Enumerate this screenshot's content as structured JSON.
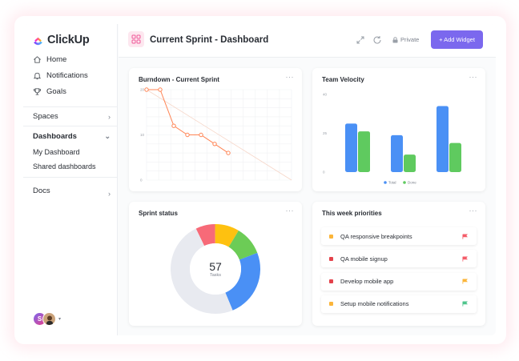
{
  "brand": {
    "name": "ClickUp"
  },
  "sidebar": {
    "nav": [
      {
        "label": "Home",
        "icon": "home-icon"
      },
      {
        "label": "Notifications",
        "icon": "bell-icon"
      },
      {
        "label": "Goals",
        "icon": "trophy-icon"
      }
    ],
    "spaces": {
      "label": "Spaces"
    },
    "dashboards": {
      "label": "Dashboards",
      "items": [
        {
          "label": "My Dashboard"
        },
        {
          "label": "Shared dashboards"
        }
      ]
    },
    "docs": {
      "label": "Docs"
    },
    "user_initial": "S"
  },
  "header": {
    "title": "Current Sprint - Dashboard",
    "privacy": "Private",
    "add_widget": "+ Add Widget"
  },
  "widgets": {
    "burndown": {
      "title": "Burndown - Current Sprint",
      "more": "···",
      "chart_data": {
        "type": "line",
        "y_ticks": [
          "20",
          "10",
          "0"
        ],
        "ylim": [
          0,
          20
        ],
        "series": [
          {
            "values": [
              20,
              20,
              12,
              10,
              10,
              8,
              6
            ]
          }
        ],
        "guideline": [
          20,
          0
        ]
      }
    },
    "velocity": {
      "title": "Team Velocity",
      "more": "···",
      "chart_data": {
        "type": "bar",
        "y_ticks": [
          "40",
          "25",
          "0"
        ],
        "ylim": [
          0,
          40
        ],
        "categories": [
          "",
          "",
          ""
        ],
        "series": [
          {
            "name": "Total",
            "color": "#4a90f5",
            "values": [
              25,
              19,
              34
            ]
          },
          {
            "name": "Done",
            "color": "#5fca5f",
            "values": [
              21,
              9,
              15
            ]
          }
        ],
        "legend": "bottom"
      }
    },
    "sprint_status": {
      "title": "Sprint status",
      "more": "···",
      "center_value": "57",
      "center_label": "Tasks",
      "chart_data": {
        "type": "pie",
        "slices": [
          {
            "color": "#f76a78",
            "value": 4
          },
          {
            "color": "#fec110",
            "value": 5
          },
          {
            "color": "#6ccc56",
            "value": 6
          },
          {
            "color": "#4a90f5",
            "value": 14
          },
          {
            "color": "#e8eaf0",
            "value": 28
          }
        ]
      }
    },
    "priorities": {
      "title": "This week priorities",
      "more": "···",
      "items": [
        {
          "label": "QA responsive breakpoints",
          "dot": "#fbb53a",
          "flag": "#f45c69"
        },
        {
          "label": "QA mobile signup",
          "dot": "#e4424b",
          "flag": "#f45c69"
        },
        {
          "label": "Develop mobile app",
          "dot": "#e4424b",
          "flag": "#fbb53a"
        },
        {
          "label": "Setup mobile notifications",
          "dot": "#fbb53a",
          "flag": "#4fc58c"
        }
      ]
    }
  },
  "colors": {
    "accent": "#7b68ee",
    "burndown_line": "#ff8454"
  }
}
